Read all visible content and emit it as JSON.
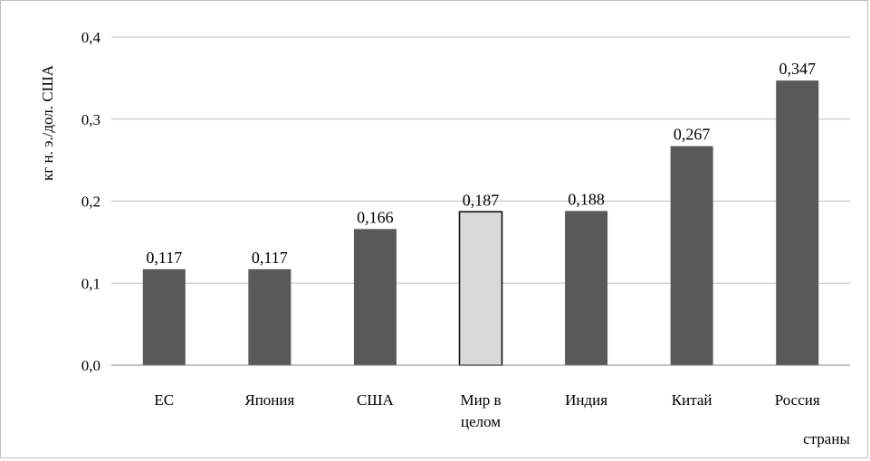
{
  "chart_data": {
    "type": "bar",
    "ylabel": "кг н. э./дол. США",
    "xlabel": "страны",
    "ylim": [
      0,
      0.4
    ],
    "yticks": [
      "0,0",
      "0,1",
      "0,2",
      "0,3",
      "0,4"
    ],
    "grid": true,
    "categories": [
      [
        "ЕС"
      ],
      [
        "Япония"
      ],
      [
        "США"
      ],
      [
        "Мир в",
        "целом"
      ],
      [
        "Индия"
      ],
      [
        "Китай"
      ],
      [
        "Россия"
      ]
    ],
    "values": [
      0.117,
      0.117,
      0.166,
      0.187,
      0.188,
      0.267,
      0.347
    ],
    "value_labels": [
      "0,117",
      "0,117",
      "0,166",
      "0,187",
      "0,188",
      "0,267",
      "0,347"
    ],
    "colors": {
      "bar": "#595959",
      "highlight": "#d9d9d9",
      "highlight_border": "#000000",
      "grid": "#bfbfbf",
      "axis": "#808080"
    },
    "highlight_index": 3
  }
}
